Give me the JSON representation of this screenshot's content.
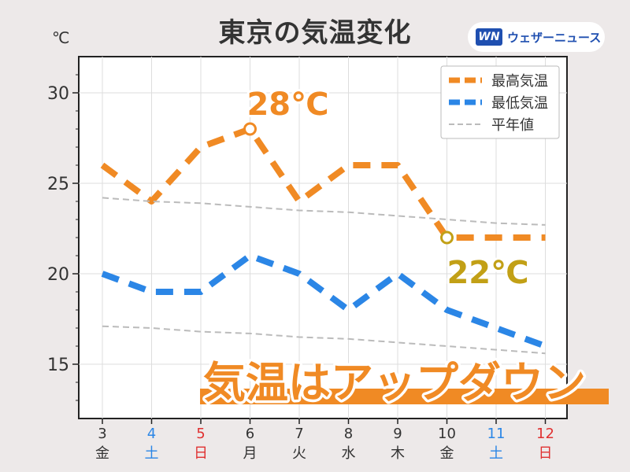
{
  "header": {
    "title": "東京の気温変化",
    "unit": "℃",
    "brand_logo": "WN",
    "brand_text": "ウェザーニュース"
  },
  "chart_data": {
    "type": "line",
    "x": [
      {
        "day": "3",
        "weekday": "金"
      },
      {
        "day": "4",
        "weekday": "土"
      },
      {
        "day": "5",
        "weekday": "日"
      },
      {
        "day": "6",
        "weekday": "月"
      },
      {
        "day": "7",
        "weekday": "火"
      },
      {
        "day": "8",
        "weekday": "水"
      },
      {
        "day": "9",
        "weekday": "木"
      },
      {
        "day": "10",
        "weekday": "金"
      },
      {
        "day": "11",
        "weekday": "土"
      },
      {
        "day": "12",
        "weekday": "日"
      }
    ],
    "ylim": [
      12,
      32
    ],
    "yticks": [
      15,
      20,
      25,
      30
    ],
    "grid": true,
    "legend_position": "top-right",
    "series": [
      {
        "name": "最高気温",
        "color": "#f08a24",
        "values": [
          26,
          24,
          27,
          28,
          24,
          26,
          26,
          22,
          22,
          22
        ]
      },
      {
        "name": "最低気温",
        "color": "#2b86e6",
        "values": [
          20,
          19,
          19,
          21,
          20,
          18,
          20,
          18,
          17,
          16
        ]
      },
      {
        "name": "平年値",
        "color": "#bbbbbb",
        "values": [
          24.2,
          24.0,
          23.9,
          23.7,
          23.5,
          23.4,
          23.2,
          23.0,
          22.8,
          22.7
        ]
      },
      {
        "name": "",
        "color": "#bbbbbb",
        "values": [
          17.1,
          17.0,
          16.8,
          16.7,
          16.5,
          16.4,
          16.2,
          16.0,
          15.8,
          15.6
        ]
      }
    ],
    "annotations": [
      {
        "text": "28℃",
        "x_index": 3,
        "value": 28,
        "fill": "#f08a24"
      },
      {
        "text": "22℃",
        "x_index": 7,
        "value": 22,
        "fill": "#c2a016"
      }
    ],
    "banner": "気温はアップダウン",
    "weekday_colors": {
      "土": "#2b86e6",
      "日": "#e03030",
      "default": "#333333"
    }
  }
}
